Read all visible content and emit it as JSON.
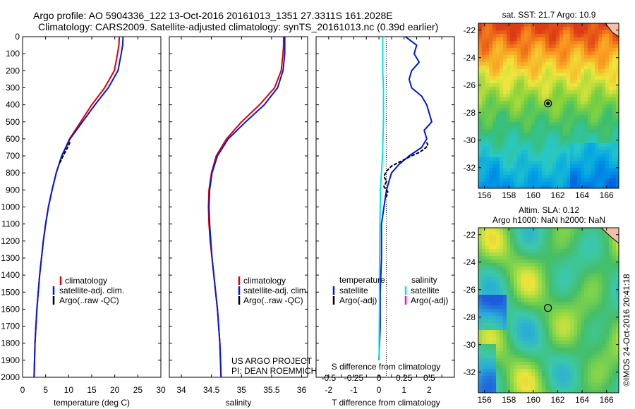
{
  "header": {
    "line1": "Argo profile: AO 5904336_122 13-Oct-2016 20161013_1351 27.3311S 161.2028E",
    "line2": "Climatology: CARS2009. Satellite-adjusted climatology: synTS_20161013.nc (0.39d earlier)"
  },
  "colors": {
    "climatology": "#e00000",
    "satellite": "#0018e0",
    "argo": "#000000",
    "salinity_satellite": "#00e5e5",
    "salinity_argo": "#ff00ff"
  },
  "chart_data": [
    {
      "id": "temperature",
      "type": "line",
      "xlabel": "temperature (deg C)",
      "xlim": [
        0,
        30
      ],
      "xticks": [
        0,
        5,
        10,
        15,
        20,
        25,
        30
      ],
      "ylim": [
        0,
        2000
      ],
      "yticks": [
        0,
        100,
        200,
        300,
        400,
        500,
        600,
        700,
        800,
        900,
        1000,
        1100,
        1200,
        1300,
        1400,
        1500,
        1600,
        1700,
        1800,
        1900,
        2000
      ],
      "y_inverted": true,
      "legend": [
        "climatology",
        "satellite-adj. clim.",
        "Argo(..raw -QC)"
      ],
      "series": [
        {
          "name": "climatology",
          "color": "#e00000",
          "x": [
            21.0,
            20.9,
            20.6,
            19.9,
            17.8,
            15.0,
            12.6,
            10.2,
            8.5,
            7.3,
            6.4,
            5.6,
            5.0,
            4.5,
            4.1,
            3.7,
            3.4,
            3.1,
            2.9,
            2.7,
            2.5
          ],
          "y": [
            0,
            50,
            100,
            200,
            300,
            400,
            500,
            600,
            700,
            800,
            900,
            1000,
            1100,
            1200,
            1300,
            1400,
            1500,
            1600,
            1700,
            1800,
            2000
          ]
        },
        {
          "name": "satellite-adj. clim.",
          "color": "#0018e0",
          "x": [
            21.8,
            21.7,
            21.4,
            20.7,
            18.6,
            15.7,
            13.0,
            10.3,
            8.5,
            7.3,
            6.4,
            5.6,
            5.0,
            4.5,
            4.1,
            3.7,
            3.4,
            3.1,
            2.9,
            2.7,
            2.5
          ],
          "y": [
            0,
            50,
            100,
            200,
            300,
            400,
            500,
            600,
            700,
            800,
            900,
            1000,
            1100,
            1200,
            1300,
            1400,
            1500,
            1600,
            1700,
            1800,
            2000
          ]
        },
        {
          "name": "Argo(..raw -QC)",
          "color": "#000000",
          "dashed": true,
          "x": [
            10.3,
            9.6,
            8.8,
            8.1
          ],
          "y": [
            620,
            660,
            700,
            740
          ]
        }
      ]
    },
    {
      "id": "salinity",
      "type": "line",
      "xlabel": "salinity",
      "xlim": [
        33.8,
        36.1
      ],
      "xticks": [
        34,
        34.5,
        35,
        35.5,
        36
      ],
      "ylim": [
        0,
        2000
      ],
      "y_inverted": true,
      "legend": [
        "climatology",
        "satellite-adj. clim.",
        "Argo(..raw -QC)"
      ],
      "annotation": [
        "US ARGO PROJECT",
        "PI: DEAN ROEMMICH"
      ],
      "series": [
        {
          "name": "climatology",
          "color": "#e00000",
          "x": [
            35.7,
            35.7,
            35.69,
            35.66,
            35.55,
            35.3,
            35.0,
            34.75,
            34.58,
            34.5,
            34.46,
            34.45,
            34.46,
            34.48,
            34.51,
            34.54,
            34.57,
            34.6,
            34.62,
            34.64,
            34.66
          ],
          "y": [
            0,
            50,
            100,
            200,
            300,
            400,
            500,
            600,
            700,
            800,
            900,
            1000,
            1100,
            1200,
            1300,
            1400,
            1500,
            1600,
            1700,
            1800,
            2000
          ]
        },
        {
          "name": "satellite-adj. clim.",
          "color": "#0018e0",
          "x": [
            35.72,
            35.72,
            35.72,
            35.69,
            35.6,
            35.38,
            35.07,
            34.78,
            34.6,
            34.51,
            34.47,
            34.46,
            34.47,
            34.49,
            34.51,
            34.54,
            34.57,
            34.6,
            34.62,
            34.64,
            34.66
          ],
          "y": [
            0,
            50,
            100,
            200,
            300,
            400,
            500,
            600,
            700,
            800,
            900,
            1000,
            1100,
            1200,
            1300,
            1400,
            1500,
            1600,
            1700,
            1800,
            2000
          ]
        }
      ]
    },
    {
      "id": "difference",
      "type": "line",
      "xlabel": "T difference from climatology",
      "xlabel_top": "S difference from climatology",
      "xlim": [
        -2.5,
        3.0
      ],
      "xticks": [
        -2,
        -1.5,
        -1,
        -0.5,
        0,
        0.5,
        1,
        1.5,
        2,
        2.5
      ],
      "xticklabels": [
        "-2",
        "",
        "-1",
        "",
        "0",
        "",
        "1",
        "",
        "2",
        ""
      ],
      "s_xticks": [
        -0.5,
        -0.25,
        0,
        0.25,
        0.5
      ],
      "s_xticklabels": [
        "-0.5",
        "-0.25",
        "0",
        "0.25",
        "0.5"
      ],
      "ylim": [
        0,
        2000
      ],
      "y_inverted": true,
      "legend_headers": [
        "temperature",
        "salinity"
      ],
      "legend": [
        "satellite",
        "Argo(-adj)",
        "satellite",
        "Argo(-adj)"
      ],
      "series": [
        {
          "name": "temperature satellite",
          "color": "#0018e0",
          "x": [
            1.05,
            1.5,
            1.4,
            1.6,
            1.3,
            1.2,
            1.3,
            1.7,
            1.9,
            2.0,
            2.1,
            1.8,
            1.9,
            1.7,
            1.2,
            0.8,
            0.5,
            0.4,
            0.3,
            0.2,
            0.1,
            0.1,
            0.05,
            0.05,
            0.0
          ],
          "y": [
            0,
            50,
            100,
            150,
            200,
            250,
            300,
            350,
            400,
            450,
            500,
            550,
            600,
            650,
            700,
            750,
            800,
            850,
            900,
            1000,
            1100,
            1300,
            1500,
            1700,
            1900
          ]
        },
        {
          "name": "salinity satellite",
          "color": "#00e5e5",
          "x": [
            0.15,
            0.15,
            0.15,
            0.18,
            0.18,
            0.18,
            0.17,
            0.16,
            0.15,
            0.14,
            0.12,
            0.1,
            0.08,
            0.06,
            0.05,
            0.04,
            0.03,
            0.02,
            0.02,
            0.01,
            0.01
          ],
          "y": [
            0,
            100,
            200,
            300,
            400,
            500,
            550,
            600,
            650,
            700,
            750,
            800,
            850,
            900,
            1000,
            1100,
            1200,
            1400,
            1600,
            1800,
            1900
          ]
        },
        {
          "name": "temperature Argo",
          "color": "#000000",
          "dashed": true,
          "x": [
            1.9,
            1.95,
            1.8,
            1.6,
            1.3,
            0.9,
            0.5,
            0.3,
            0.2,
            0.3,
            0.2,
            0.35,
            0.3
          ],
          "y": [
            620,
            640,
            660,
            680,
            700,
            730,
            760,
            790,
            820,
            850,
            880,
            910,
            940
          ]
        }
      ]
    },
    {
      "id": "sst_map",
      "type": "heatmap",
      "title": "sat. SST: 21.7 Argo: 10.9",
      "xlim": [
        155.5,
        167
      ],
      "ylim": [
        -33.5,
        -21.5
      ],
      "xticks": [
        156,
        158,
        160,
        162,
        164,
        166
      ],
      "yticks": [
        -22,
        -24,
        -26,
        -28,
        -30,
        -32
      ],
      "marker": {
        "lon": 161.2,
        "lat": -27.33
      }
    },
    {
      "id": "sla_map",
      "type": "heatmap",
      "title": "Altim. SLA: 0.12",
      "subtitle": "Argo h1000: NaN h2000: NaN",
      "xlim": [
        155.5,
        167
      ],
      "ylim": [
        -33.5,
        -21.5
      ],
      "xticks": [
        156,
        158,
        160,
        162,
        164,
        166
      ],
      "yticks": [
        -22,
        -24,
        -26,
        -28,
        -30,
        -32
      ],
      "marker": {
        "lon": 161.2,
        "lat": -27.33
      }
    }
  ],
  "credit": "©IMOS 24-Oct-2016 20:41:18"
}
